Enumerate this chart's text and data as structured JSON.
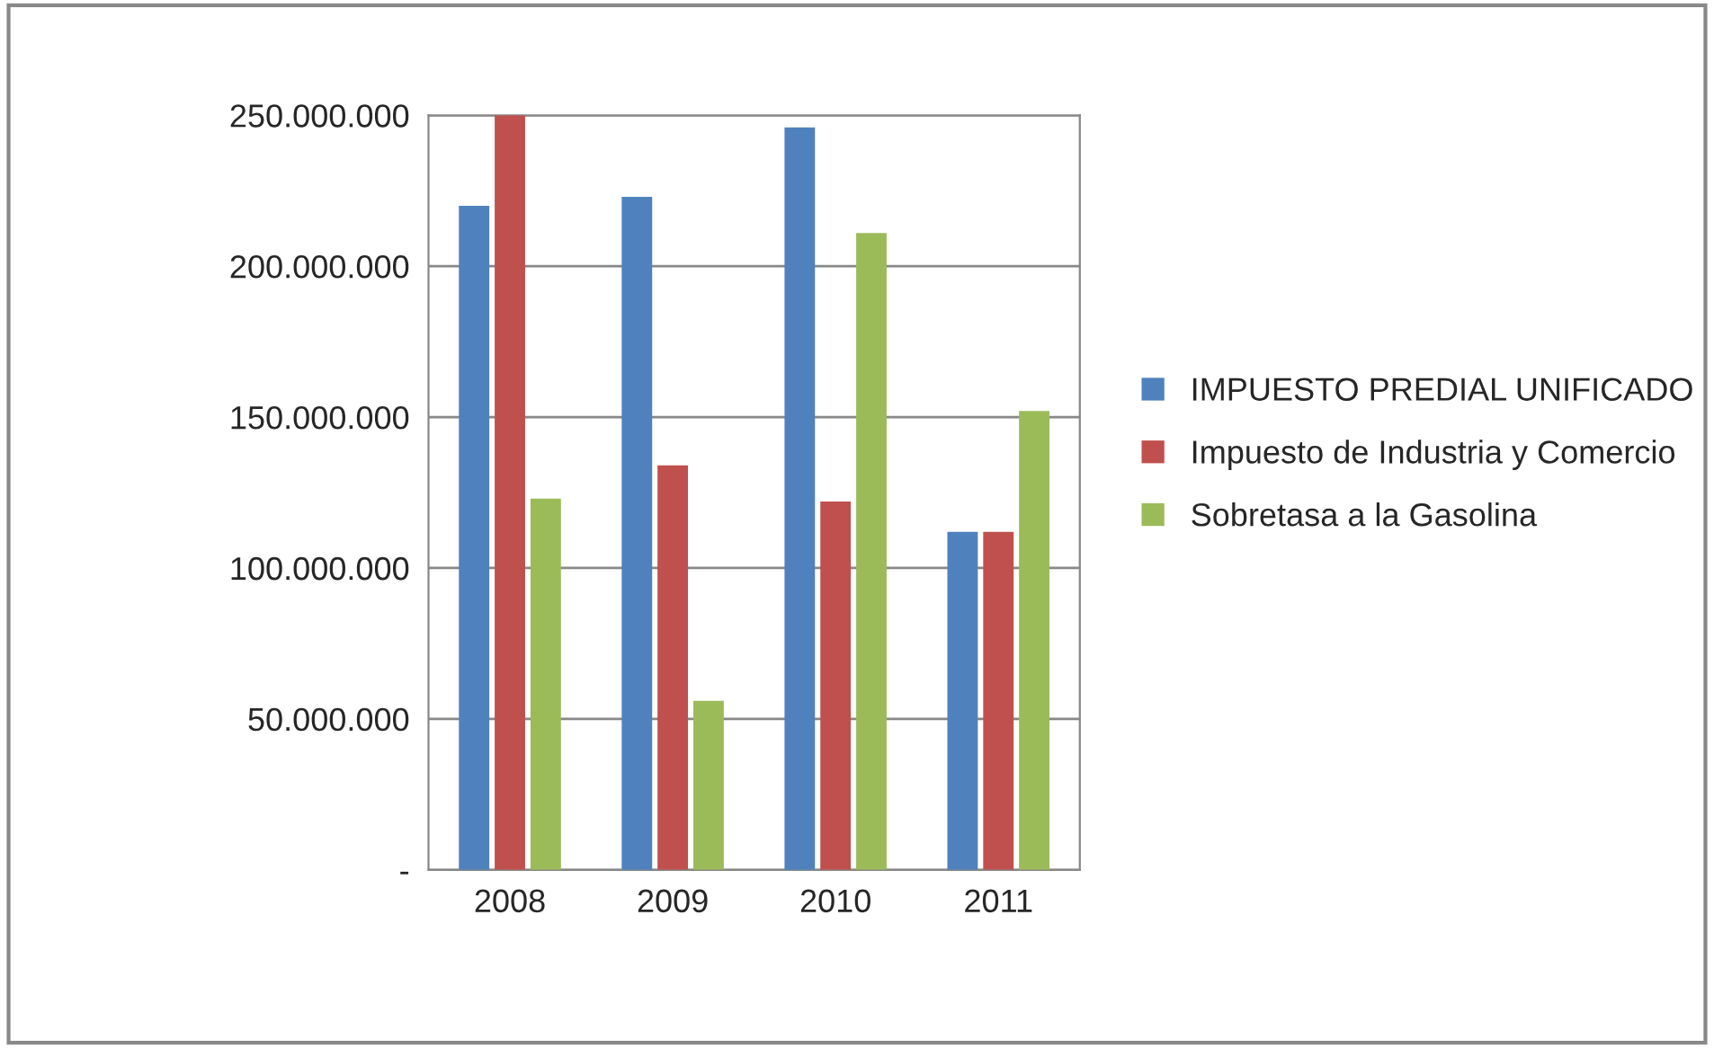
{
  "chart_data": {
    "type": "bar",
    "categories": [
      "2008",
      "2009",
      "2010",
      "2011"
    ],
    "series": [
      {
        "name": "IMPUESTO PREDIAL UNIFICADO",
        "color": "#4f81bd",
        "values": [
          220000000,
          223000000,
          246000000,
          112000000
        ]
      },
      {
        "name": "Impuesto de Industria y Comercio",
        "color": "#c0504d",
        "values": [
          250000000,
          134000000,
          122000000,
          112000000
        ]
      },
      {
        "name": "Sobretasa a la Gasolina",
        "color": "#9bbb59",
        "values": [
          123000000,
          56000000,
          211000000,
          152000000
        ]
      }
    ],
    "ylim": [
      0,
      250000000
    ],
    "yticks": [
      {
        "value": 0,
        "label": "-"
      },
      {
        "value": 50000000,
        "label": "50.000.000"
      },
      {
        "value": 100000000,
        "label": "100.000.000"
      },
      {
        "value": 150000000,
        "label": "150.000.000"
      },
      {
        "value": 200000000,
        "label": "200.000.000"
      },
      {
        "value": 250000000,
        "label": "250.000.000"
      }
    ],
    "grid": "y",
    "legend": "right"
  }
}
